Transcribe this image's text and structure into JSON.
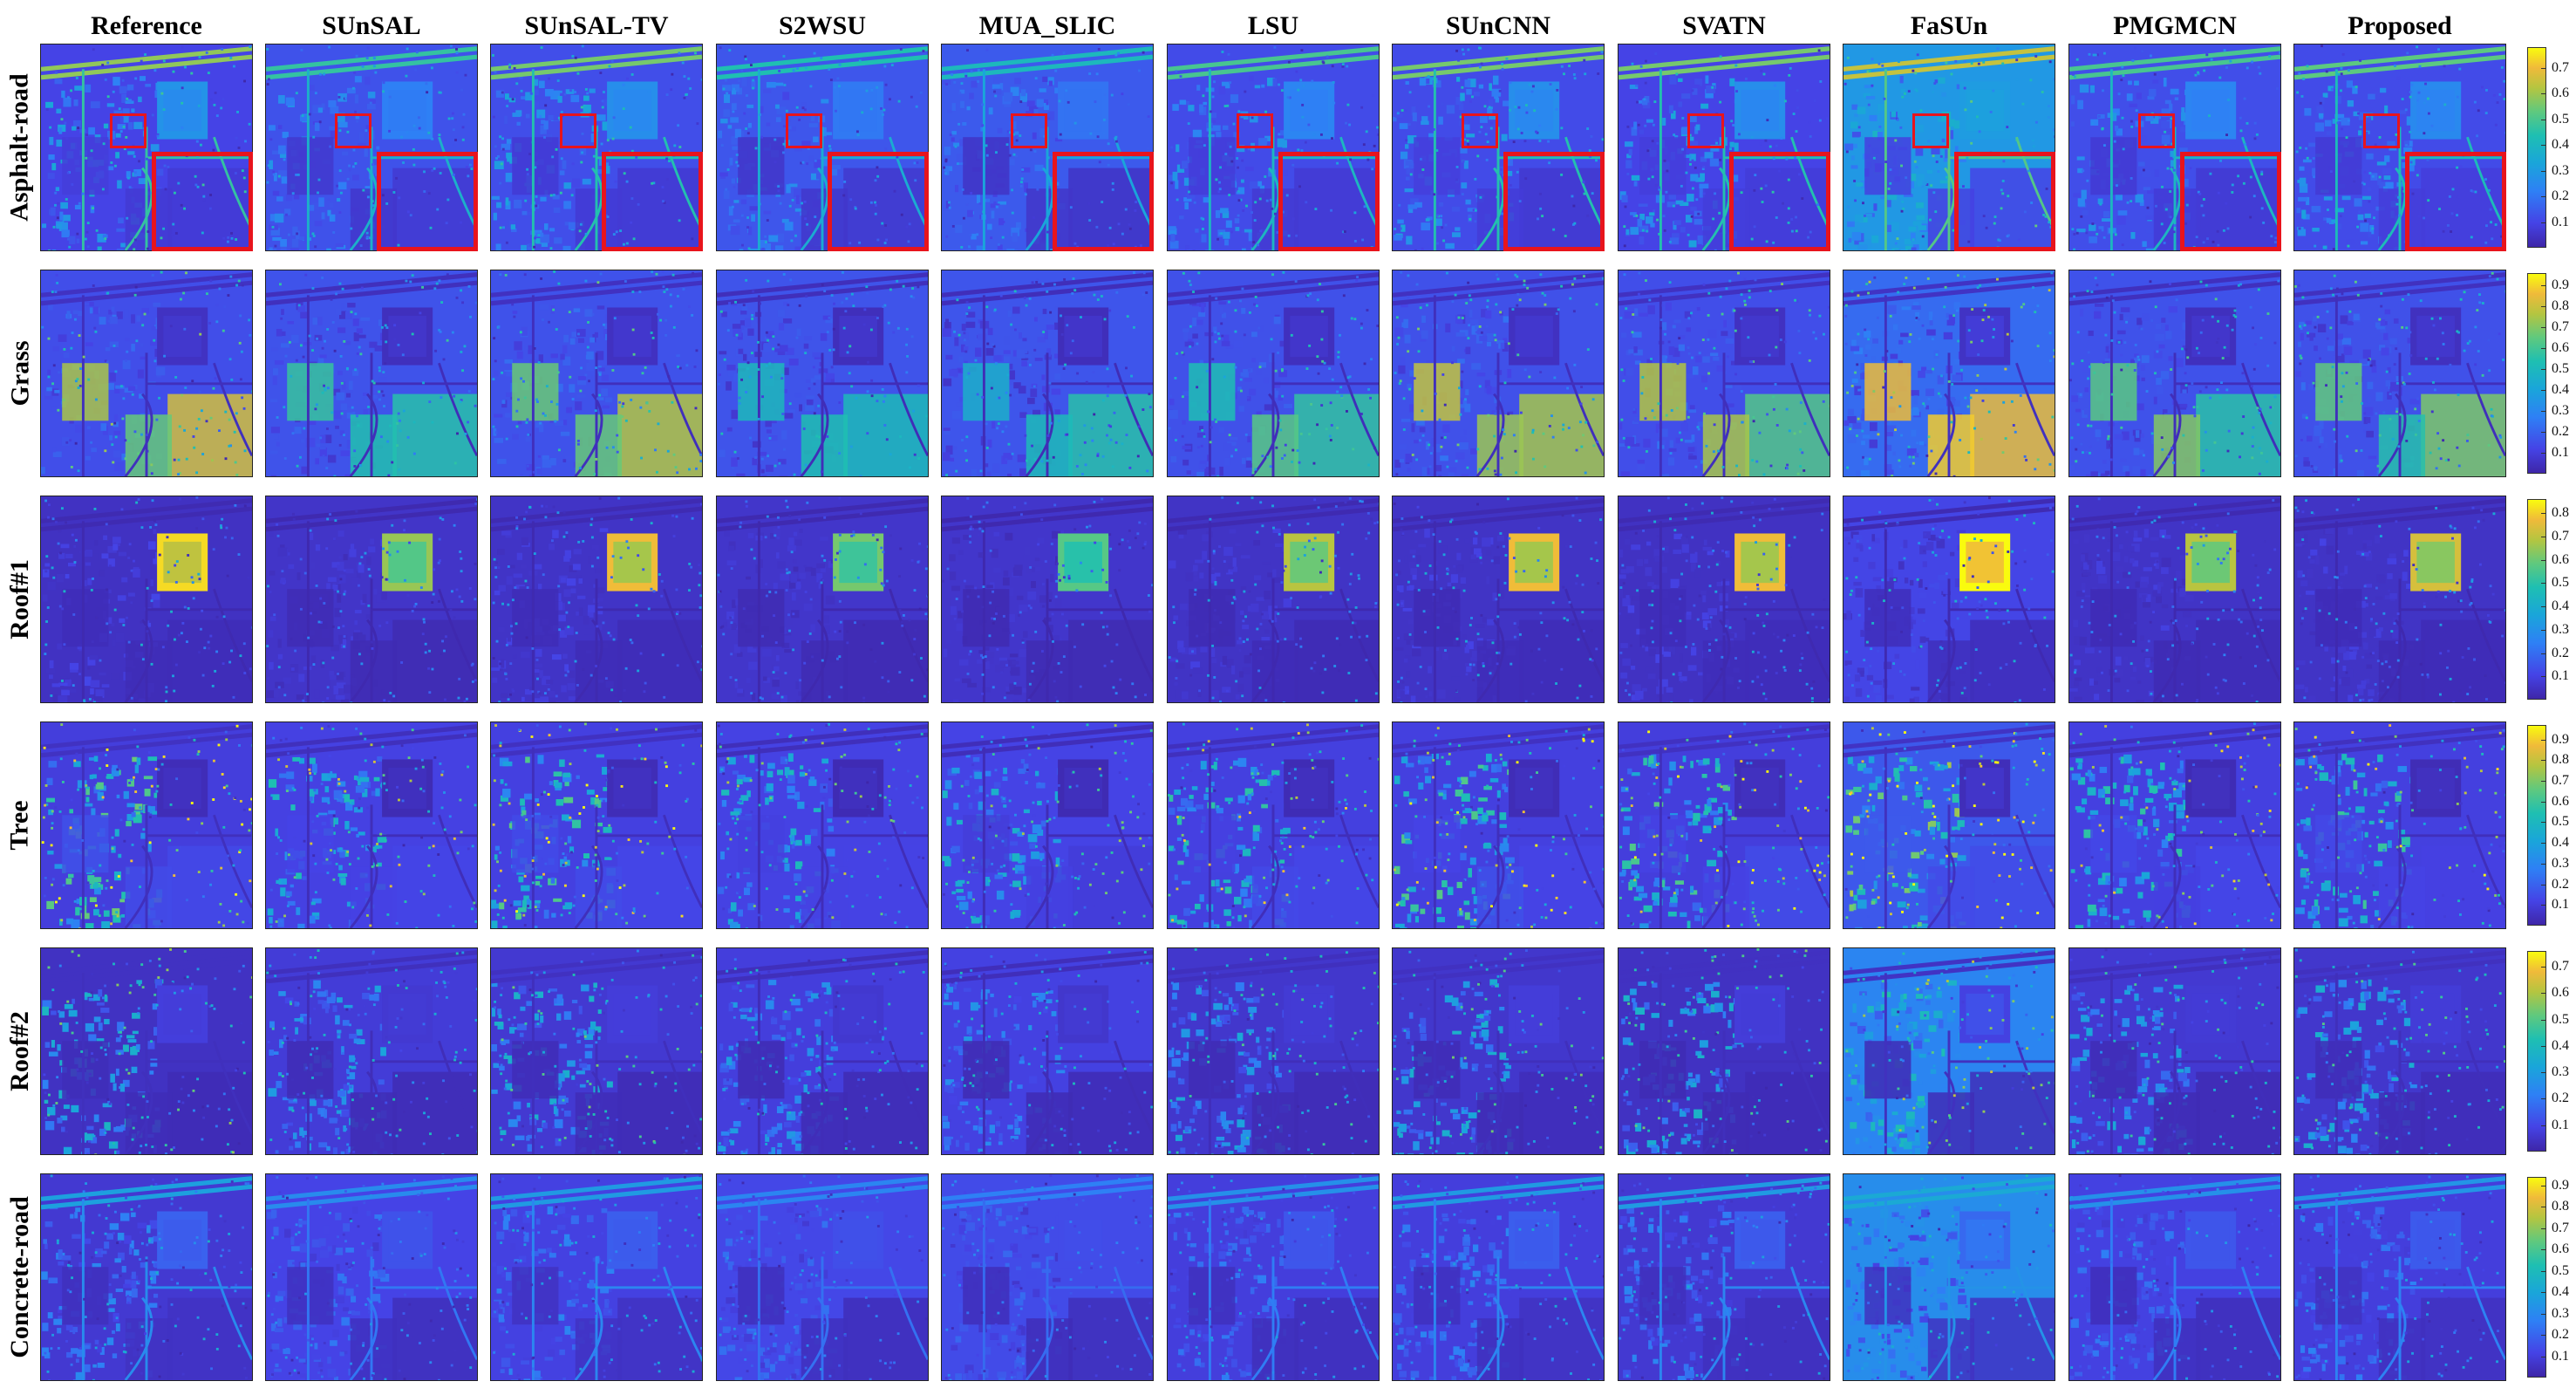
{
  "columns": [
    "Reference",
    "SUnSAL",
    "SUnSAL-TV",
    "S2WSU",
    "MUA_SLIC",
    "LSU",
    "SUnCNN",
    "SVATN",
    "FaSUn",
    "PMGMCN",
    "Proposed"
  ],
  "rows": [
    {
      "label": "Asphalt-road",
      "ticks": [
        "0.7",
        "0.6",
        "0.5",
        "0.4",
        "0.3",
        "0.2",
        "0.1"
      ],
      "max": 0.78
    },
    {
      "label": "Grass",
      "ticks": [
        "0.9",
        "0.8",
        "0.7",
        "0.6",
        "0.5",
        "0.4",
        "0.3",
        "0.2",
        "0.1"
      ],
      "max": 0.96
    },
    {
      "label": "Roof#1",
      "ticks": [
        "0.8",
        "0.7",
        "0.6",
        "0.5",
        "0.4",
        "0.3",
        "0.2",
        "0.1"
      ],
      "max": 0.86
    },
    {
      "label": "Tree",
      "ticks": [
        "0.9",
        "0.8",
        "0.7",
        "0.6",
        "0.5",
        "0.4",
        "0.3",
        "0.2",
        "0.1"
      ],
      "max": 0.97
    },
    {
      "label": "Roof#2",
      "ticks": [
        "0.7",
        "0.6",
        "0.5",
        "0.4",
        "0.3",
        "0.2",
        "0.1"
      ],
      "max": 0.76
    },
    {
      "label": "Concrete-road",
      "ticks": [
        "0.9",
        "0.8",
        "0.7",
        "0.6",
        "0.5",
        "0.4",
        "0.3",
        "0.2",
        "0.1"
      ],
      "max": 0.94
    }
  ],
  "colors": {
    "low": "#3e26a8",
    "mid": "#1ebfb2",
    "high": "#f9fb0e",
    "highlight": "#e8141c"
  }
}
